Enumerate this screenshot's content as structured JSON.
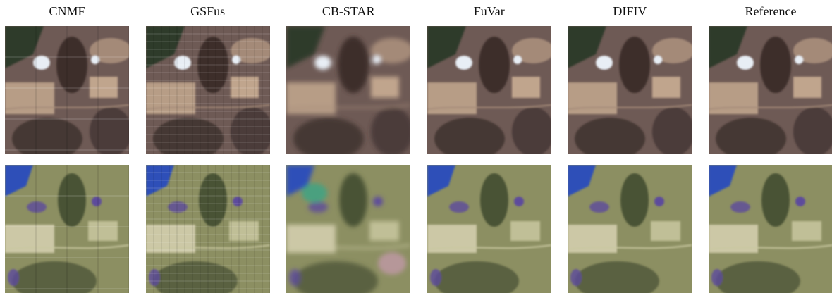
{
  "methods": [
    {
      "label": "CNMF",
      "style": "sharp",
      "grid": true,
      "blocky": false
    },
    {
      "label": "GSFus",
      "style": "sharp",
      "grid": true,
      "blocky": true
    },
    {
      "label": "CB-STAR",
      "style": "blurred",
      "grid": false,
      "blocky": false
    },
    {
      "label": "FuVar",
      "style": "sharp",
      "grid": false,
      "blocky": false
    },
    {
      "label": "DIFIV",
      "style": "sharp",
      "grid": false,
      "blocky": false
    },
    {
      "label": "Reference",
      "style": "sharp",
      "grid": false,
      "blocky": false
    }
  ],
  "rows": [
    {
      "scene": "natural-color",
      "base": "#6e5a55",
      "accents": [
        "#3c2e2c",
        "#a48a78",
        "#cfb397",
        "#e8eef5",
        "#2e3a2a"
      ]
    },
    {
      "scene": "false-color",
      "base": "#8c8f62",
      "accents": [
        "#4a5236",
        "#c9c8a0",
        "#2e4fb8",
        "#5d4b9c",
        "#dcd6b8"
      ]
    }
  ]
}
